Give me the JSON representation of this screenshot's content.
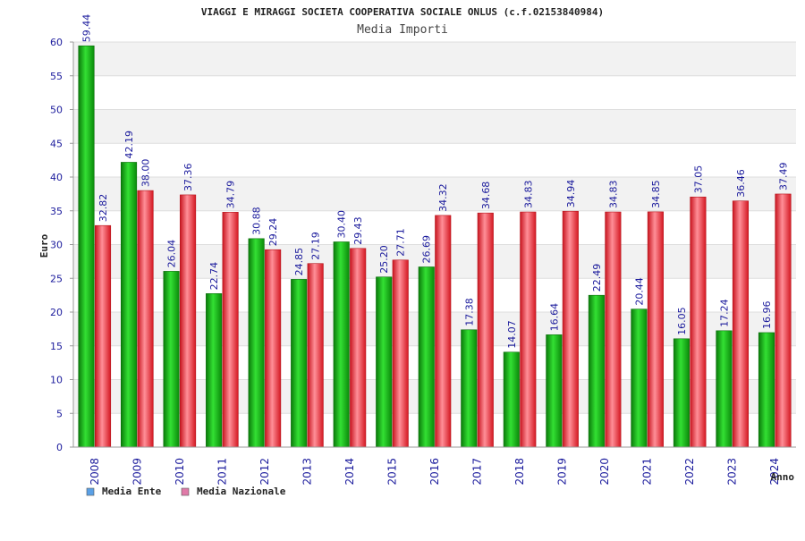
{
  "chart_data": {
    "type": "bar",
    "title": "VIAGGI E MIRAGGI SOCIETA COOPERATIVA SOCIALE ONLUS (c.f.02153840984)",
    "subtitle": "Media Importi",
    "ylabel": "Euro",
    "xlabel": "Anno",
    "ylim": [
      0,
      60
    ],
    "yticks": [
      0,
      5,
      10,
      15,
      20,
      25,
      30,
      35,
      40,
      45,
      50,
      55,
      60
    ],
    "grid": true,
    "legend_position": "bottom-left",
    "categories": [
      "2008",
      "2009",
      "2010",
      "2011",
      "2012",
      "2013",
      "2014",
      "2015",
      "2016",
      "2017",
      "2018",
      "2019",
      "2020",
      "2021",
      "2022",
      "2023",
      "2024"
    ],
    "series": [
      {
        "name": "Media Ente",
        "color": "#1aa81a",
        "legend_color": "#5aa0e6",
        "values": [
          59.44,
          42.19,
          26.04,
          22.74,
          30.88,
          24.85,
          30.4,
          25.2,
          26.69,
          17.38,
          14.07,
          16.64,
          22.49,
          20.44,
          16.05,
          17.24,
          16.96
        ],
        "labels": [
          "59.44",
          "42.19",
          "26.04",
          "22.74",
          "30.88",
          "24.85",
          "30.40",
          "25.20",
          "26.69",
          "17.38",
          "14.07",
          "16.64",
          "22.49",
          "20.44",
          "16.05",
          "17.24",
          "16.96"
        ]
      },
      {
        "name": "Media Nazionale",
        "color": "#e3323c",
        "legend_color": "#e07aa8",
        "values": [
          32.82,
          38.0,
          37.36,
          34.79,
          29.24,
          27.19,
          29.43,
          27.71,
          34.32,
          34.68,
          34.83,
          34.94,
          34.83,
          34.85,
          37.05,
          36.46,
          37.49
        ],
        "labels": [
          "32.82",
          "38.00",
          "37.36",
          "34.79",
          "29.24",
          "27.19",
          "29.43",
          "27.71",
          "34.32",
          "34.68",
          "34.83",
          "34.94",
          "34.83",
          "34.85",
          "37.05",
          "36.46",
          "37.49"
        ]
      }
    ]
  }
}
